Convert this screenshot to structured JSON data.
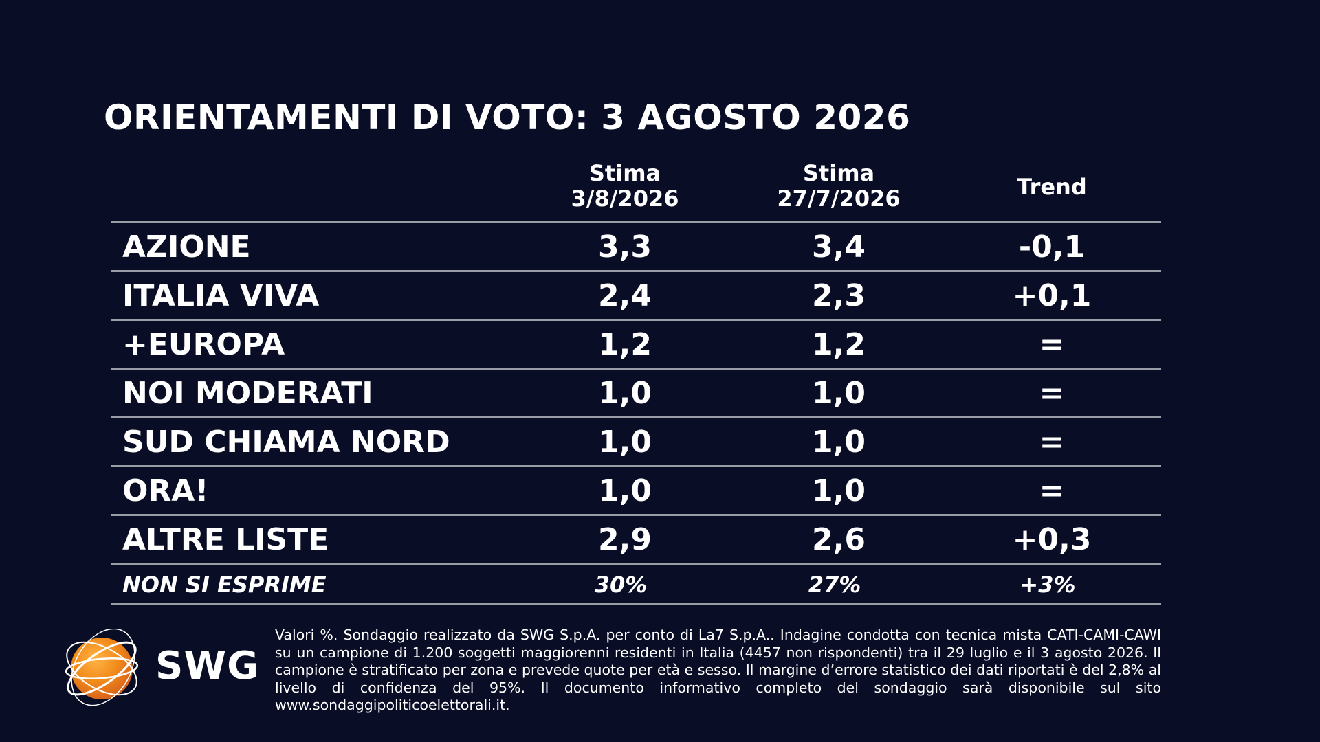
{
  "title": "ORIENTAMENTI DI VOTO: 3 AGOSTO 2026",
  "chart_data": {
    "type": "table",
    "title": "ORIENTAMENTI DI VOTO: 3 AGOSTO 2026",
    "columns": [
      {
        "line1": "Stima",
        "line2": "3/8/2026"
      },
      {
        "line1": "Stima",
        "line2": "27/7/2026"
      },
      {
        "line1": "Trend",
        "line2": ""
      }
    ],
    "rows": [
      {
        "name": "AZIONE",
        "v1": "3,3",
        "v2": "3,4",
        "trend": "-0,1"
      },
      {
        "name": "ITALIA VIVA",
        "v1": "2,4",
        "v2": "2,3",
        "trend": "+0,1"
      },
      {
        "name": "+EUROPA",
        "v1": "1,2",
        "v2": "1,2",
        "trend": "="
      },
      {
        "name": "NOI MODERATI",
        "v1": "1,0",
        "v2": "1,0",
        "trend": "="
      },
      {
        "name": "SUD CHIAMA NORD",
        "v1": "1,0",
        "v2": "1,0",
        "trend": "="
      },
      {
        "name": "ORA!",
        "v1": "1,0",
        "v2": "1,0",
        "trend": "="
      },
      {
        "name": "ALTRE LISTE",
        "v1": "2,9",
        "v2": "2,6",
        "trend": "+0,3"
      }
    ],
    "non_si_esprime": {
      "name": "NON SI ESPRIME",
      "v1": "30%",
      "v2": "27%",
      "trend": "+3%"
    }
  },
  "logo": {
    "text": "SWG",
    "colors": {
      "orange": "#f28c1b",
      "dark_orange": "#d9641a"
    }
  },
  "footnote": "Valori %. Sondaggio realizzato da SWG S.p.A. per conto di La7 S.p.A.. Indagine condotta con tecnica mista CATI-CAMI-CAWI su un campione di 1.200 soggetti maggiorenni residenti in Italia (4457 non rispondenti) tra il 29 luglio e il 3 agosto 2026. Il campione è stratificato per zona e prevede quote per età e sesso. Il margine d’errore statistico dei dati riportati è del 2,8% al livello di confidenza del 95%. Il documento informativo completo del sondaggio sarà disponibile sul sito www.sondaggipoliticoelettorali.it.",
  "colors": {
    "background": "#0a0d26",
    "text": "#ffffff",
    "rule": "#9a9ca8"
  }
}
